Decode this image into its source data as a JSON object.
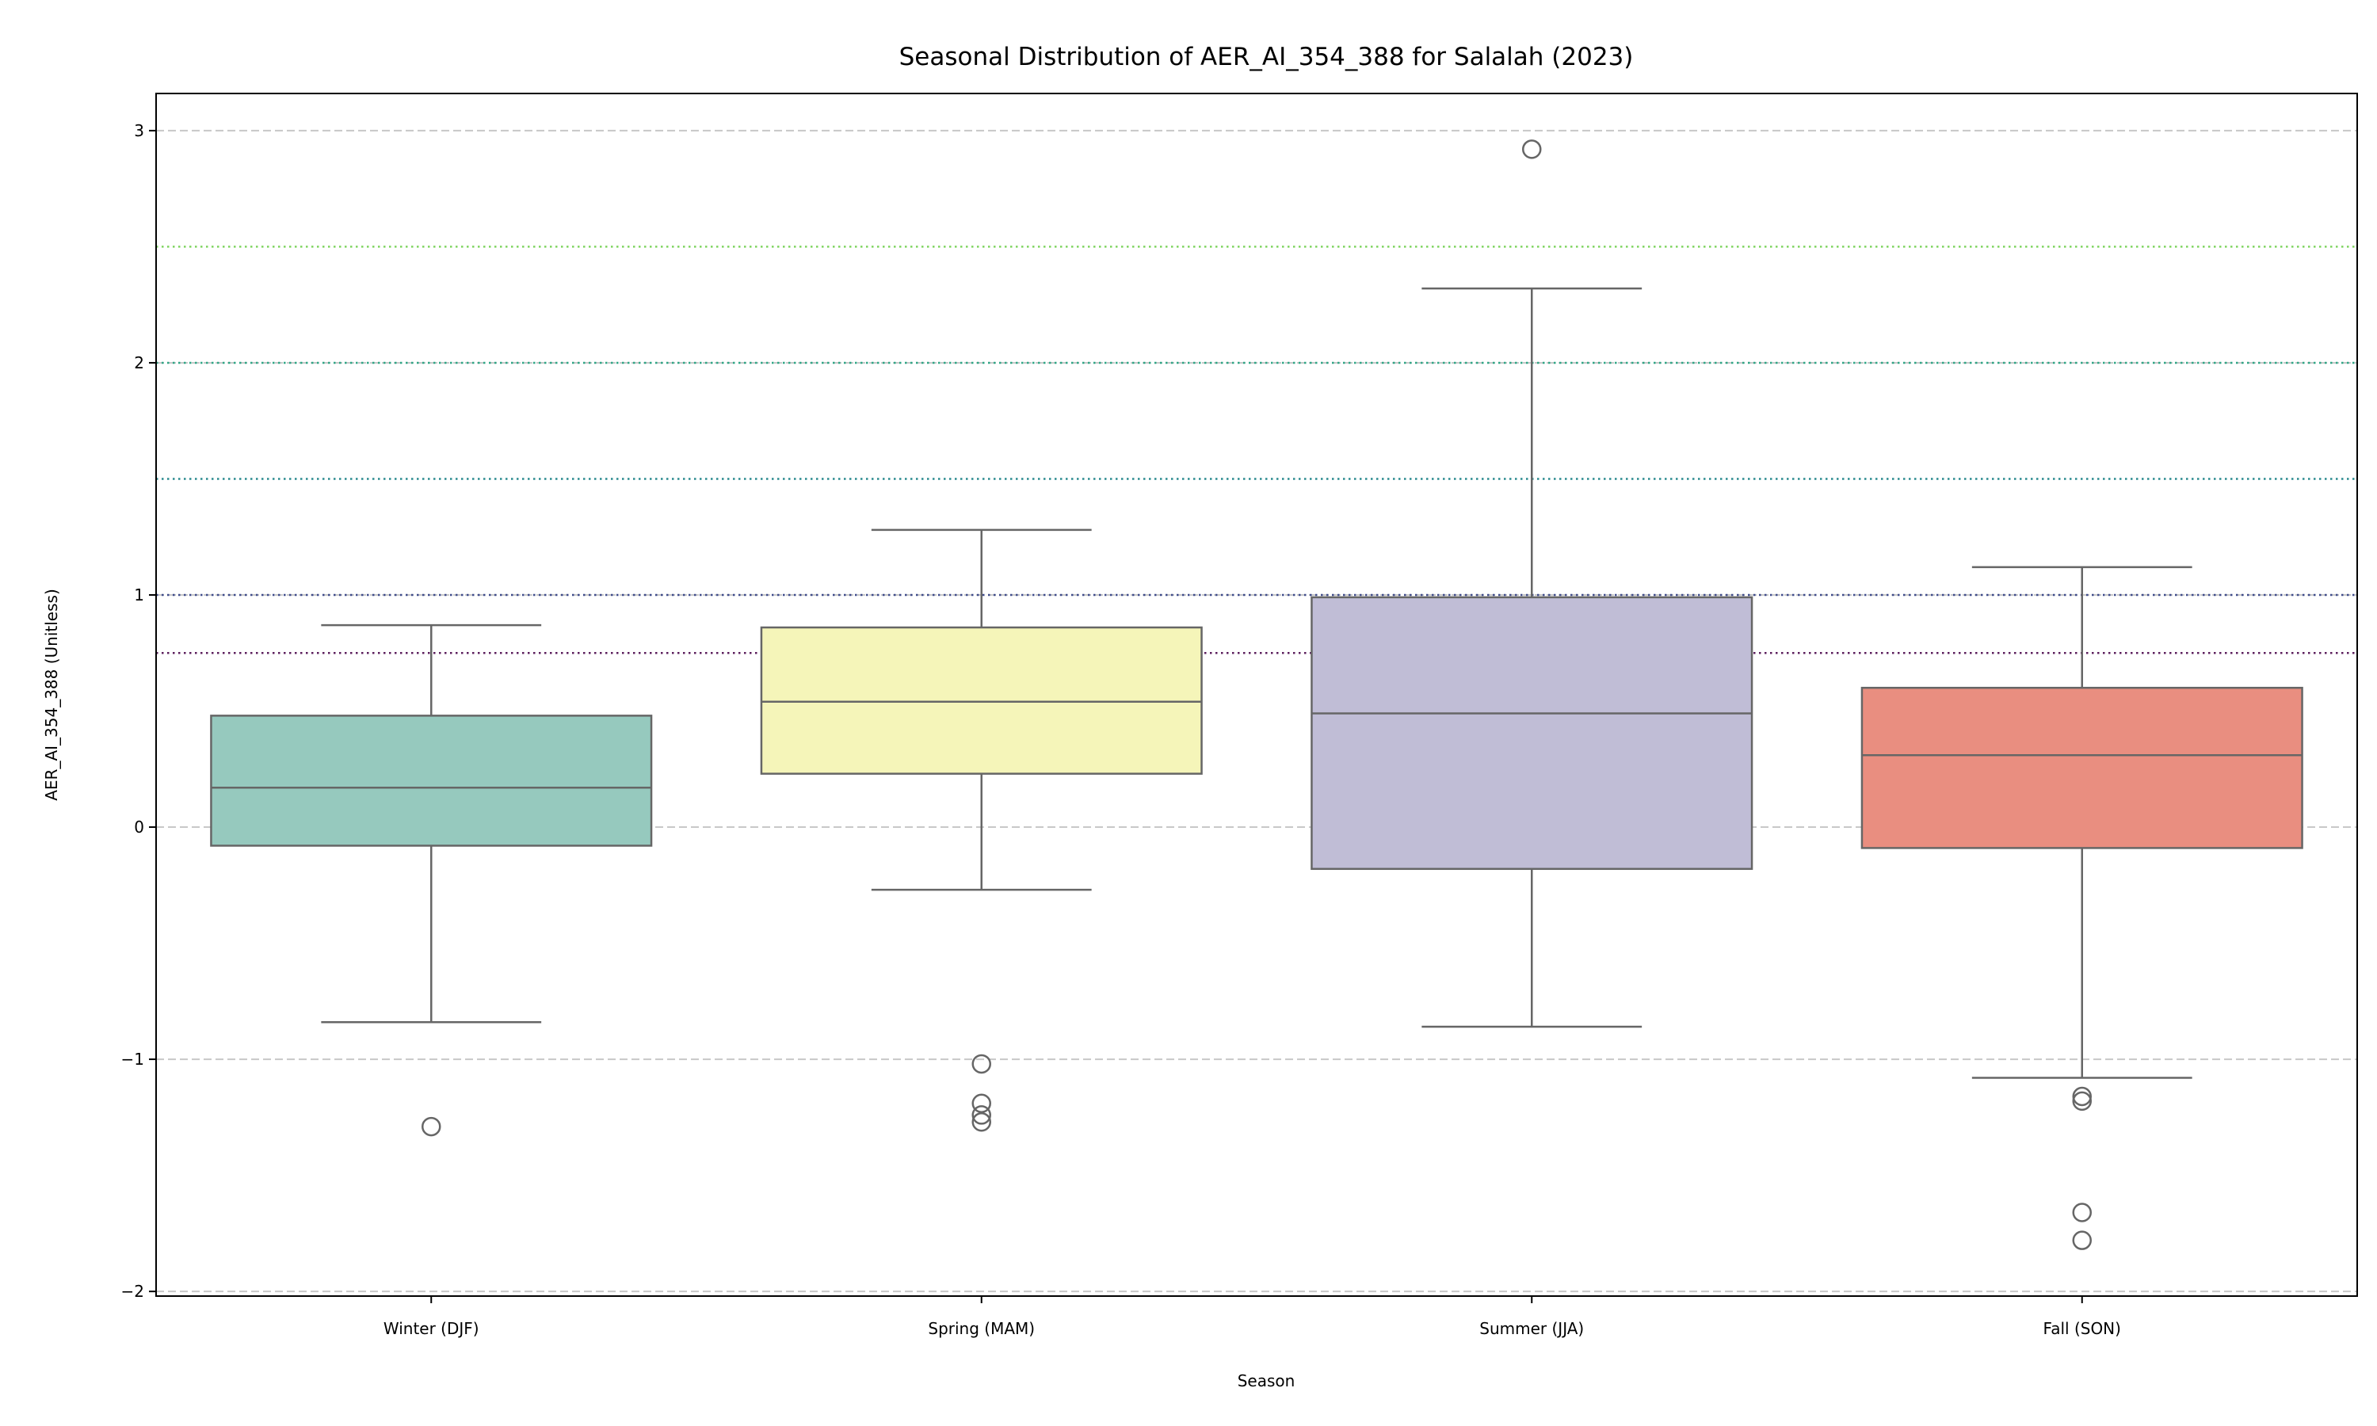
{
  "chart_data": {
    "type": "box",
    "title": "Seasonal Distribution of AER_AI_354_388 for Salalah (2023)",
    "xlabel": "Season",
    "ylabel": "AER_AI_354_388 (Unitless)",
    "ylim": [
      -2.02,
      3.16
    ],
    "yticks": [
      -2,
      -1,
      0,
      1,
      2,
      3
    ],
    "ytick_labels": [
      "−2",
      "−1",
      "0",
      "1",
      "2",
      "3"
    ],
    "grid": "horizontal dashed",
    "categories": [
      "Winter (DJF)",
      "Spring (MAM)",
      "Summer (JJA)",
      "Fall (SON)"
    ],
    "boxes": [
      {
        "category": "Winter (DJF)",
        "whisker_low": -0.84,
        "q1": -0.08,
        "median": 0.17,
        "q3": 0.48,
        "whisker_high": 0.87,
        "outliers": [
          -1.29
        ],
        "color": "#96c9be"
      },
      {
        "category": "Spring (MAM)",
        "whisker_low": -0.27,
        "q1": 0.23,
        "median": 0.54,
        "q3": 0.86,
        "whisker_high": 1.28,
        "outliers": [
          -1.02,
          -1.19,
          -1.24,
          -1.27
        ],
        "color": "#f5f5b9"
      },
      {
        "category": "Summer (JJA)",
        "whisker_low": -0.86,
        "q1": -0.18,
        "median": 0.49,
        "q3": 0.99,
        "whisker_high": 2.32,
        "outliers": [
          2.92
        ],
        "color": "#c0bdd6"
      },
      {
        "category": "Fall (SON)",
        "whisker_low": -1.08,
        "q1": -0.09,
        "median": 0.31,
        "q3": 0.6,
        "whisker_high": 1.12,
        "outliers": [
          -1.16,
          -1.18,
          -1.66,
          -1.78
        ],
        "color": "#e98e80"
      }
    ],
    "reference_lines": [
      {
        "value": 2.5,
        "color": "#7ed45f"
      },
      {
        "value": 2.0,
        "color": "#2fa585"
      },
      {
        "value": 1.5,
        "color": "#29898e"
      },
      {
        "value": 1.0,
        "color": "#3e4b8a"
      },
      {
        "value": 0.75,
        "color": "#5b1e5c"
      }
    ],
    "colors": {
      "box_edge": "#666666",
      "grid": "#c8c8c8"
    }
  }
}
